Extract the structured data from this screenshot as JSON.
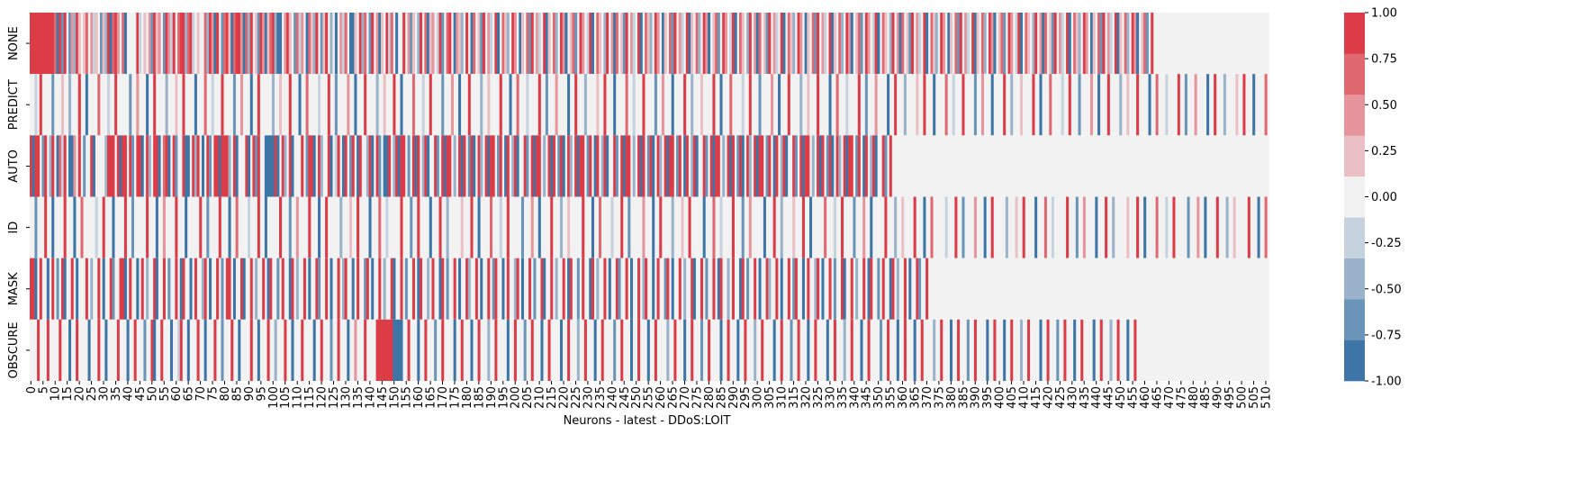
{
  "chart_data": {
    "type": "heatmap",
    "title": "",
    "xlabel": "Neurons - latest - DDoS:LOIT",
    "ylabel": "",
    "rows": [
      "NONE",
      "PREDICT",
      "AUTO",
      "ID",
      "MASK",
      "OBSCURE"
    ],
    "n_columns": 512,
    "x_tick_labels": [
      "0",
      "5",
      "10",
      "15",
      "20",
      "25",
      "30",
      "35",
      "40",
      "45",
      "50",
      "55",
      "60",
      "65",
      "70",
      "75",
      "80",
      "85",
      "90",
      "95",
      "100",
      "105",
      "110",
      "115",
      "120",
      "125",
      "130",
      "135",
      "140",
      "145",
      "150",
      "155",
      "160",
      "165",
      "170",
      "175",
      "180",
      "185",
      "190",
      "195",
      "200",
      "205",
      "210",
      "215",
      "220",
      "225",
      "230",
      "235",
      "240",
      "245",
      "250",
      "255",
      "260",
      "265",
      "270",
      "275",
      "280",
      "285",
      "290",
      "295",
      "300",
      "305",
      "310",
      "315",
      "320",
      "325",
      "330",
      "335",
      "340",
      "345",
      "350",
      "355",
      "360",
      "365",
      "370",
      "375",
      "380",
      "385",
      "390",
      "395",
      "400",
      "405",
      "410",
      "415",
      "420",
      "425",
      "430",
      "435",
      "440",
      "445",
      "450",
      "455",
      "460",
      "465",
      "470",
      "475",
      "480",
      "485",
      "490",
      "495",
      "500",
      "505",
      "510"
    ],
    "value_range": [
      -1.0,
      1.0
    ],
    "colorbar": {
      "ticks": [
        "1.00",
        "0.75",
        "0.50",
        "0.25",
        "0.00",
        "-0.25",
        "-0.50",
        "-0.75",
        "-1.00"
      ],
      "levels": 9,
      "colors": [
        "#3d76a6",
        "#6b95b8",
        "#9ab3ca",
        "#c6d3df",
        "#f2f2f2",
        "#ebc0c5",
        "#e6959c",
        "#e06870",
        "#dc3c47"
      ]
    },
    "values_rle": [
      "0,1:10 0.75:1 -1:1 1:1 -0.75:1 1:1 0:1 -0.75:1 0.5:1 -0.5:1 1:1 0.25:1 0:1 0.25:1 0.75:1 0:1 0.5:1 -0.25:1 0.25:1 0:1 -0.75:1 0.25:1 -0.5:1 1:1 -1:1 0.75:1 1:1 0.5:1 0:1 0.75:1 -1:1 0:4 1:1 -0.25:1 0:1 0.25:1 0:1 0.5:1 -0.75:1 1:1 0.25:1 0.5:1 0:1 -0.75:1 1:1 0.5:1 -0.25:1 1:1 0:1 0.75:1 1:2 -0.5:1 0.75:1 1:1 -0.25:1 0:1 0.25:1 0:2 0.75:1 -0.5:1 1:1 0.5:1 -1:1 1:1 0:1 -0.75:1 0.75:1 1:1 0.25:1 -1:1 0.75:1 1:2 0.5:1 -1:1 0.75:1 -0.5:1 1:1 0:1 0.25:1 -0.75:1 1:1 0.5:1 -1:1 0.25:1 0.75:1 1:1 -0.5:1 -1:2 0:1 0.5:1 1:1 0.25:1 0:1 -0.75:1 0.75:1 -0.25:1 0.5:1 0:1 -1:1 0.75:1 0.25:1 -0.5:1 1:1 0:1 -0.75:1 0.25:1 1:1 0:1 -0.5:1 0:1 -1:1 0:1 0.5:1 -0.25:1 0.75:1 0:1 -1:2 0.25:1 0:1 1:1 -0.5:1 0.75:1 0:1 -0.75:1 1:1 0:1 0.5:1 -1:1 0.25:1 0:1 1:1 -0.25:1 0.75:1 0:1 -1:1 0:2 1:1 0:1 0.5:1 -0.75:1 0.25:1 0:1 -0.5:1 1:1 0:1 0.75:1 -1:1 0.25:1 0.5:1 0:1 -0.25:1 1:1 -0.75:1 0:1 0.75:1 1:1 0:1 -1:1 0.5:1 0.25:1 -0.5:1 0:1 1:1 0:1 -1:1 0.75:1 0:1 0.25:1 -0.75:1 1:1 0:1 0.5:1 -0.25:1 0:1 1:1 -1:1 0:1 0.75:1 0.25:1 -0.5:1 0:1 1:1 0.5:1 0:1 -1:1 0.25:1 0:1 0.75:1 -0.75:1 1:1 0:1 0.5:1 -0.25:1 0:1 1:1 -1:1 0.25:1 0:1 0.75:1 -0.5:1 0:1 1:1 0.5:1 -1:1 0:1 0.25:1 0.75:1 -0.75:1 0:1 1:1 0.5:1 0:1 -0.25:1 1:1 -1:1 0:1 0.75:1 0.25:1 0:1 -0.5:1 1:1 0:1 0.5:1 -1:1 0.75:1 0:1 0.25:1 -0.75:1 1:1 0:1 0.5:1 -0.25:1 0:1 1:1 -1:1 0:1 0.75:1 0.25:1 -0.5:1 0:1 1:1 0.5:1 0:1 -1:1 0.25:1 0:1 0.75:1 -0.75:1 1:1 0:1 0.5:1 -0.25:1 0:1 1:1 -1:1 0.25:1 0:1 0.75:1 -0.5:1 0:1 1:1 0.5:1 -1:1 0:1 0.25:1 0.75:1 -0.75:1 0:1 1:1 0.5:1 0:1 -0.25:1 1:1 -1:1 0:1 0.75:1 0.25:1 0:1 -0.5:1 1:1 0:1 0.5:1 -1:1 0.75:1 0:1 0.25:1 -0.75:1 1:1 0:1 0.5:1 -0.25:1 0:1 1:1 -1:1 0:1 0.75:1 0.25:1 -0.5:1 0:1 1:1 0.5:1 0:1 -1:1 0.25:1 0:1 0.75:1 -0.75:1 1:1 0:1 0.5:1 -0.25:1 0:1 1:1 -1:1 0.25:1 0:1 0.75:1 -0.5:1 0:1 1:1 0.5:1 -1:1 0:1 0.25:1 0.75:1 -0.75:1 0:1 1:1 0.5:1 0:1 -0.25:1 1:1 -1:1 0:1 0.75:1 0.25:1 0:1 -0.5:1 1:1 0:1 0.5:1 -1:1 0.75:1 0:1 0.25:1 -0.75:1 1:1 0:1 0.5:1 -0.25:1 0:1 1:1 -1:1 0:1 0.75:1 0.25:1 -0.5:1 0:1 1:1 0.5:1 0:1 -1:1 0.25:1 0:1 0.75:1 -0.75:1 1:1 0:1 0.5:1 -0.25:1 0:1 1:1 -1:1 0.25:1 0:1 0.75:1 -0.5:1 0:1 1:1 0.5:1 -1:1 0:1 0.25:1 0.75:1 -0.75:1 0:1 1:1 0.5:1 0:1 -0.25:1 1:1 -1:1 0:1 0.75:1 0.25:1 0:1 -0.5:1 1:1 0:1 0.5:1 -1:1 0.75:1 0:1 0.25:1 -0.75:1 1:1 0:1 0.5:1 -0.25:1 0:1 1:1 -1:1 0:1 0.75:1 0.25:1 -0.5:1 0:1 1:1 0.5:1 0:1 -1:1 0.25:1 0:1 0.75:1 -0.75:1 1:1 0:1 0.5:1 -0.25:1 0:1 1:1 -1:1 0.25:1 0:1 0.75:1 -0.5:1 0:1 1:1 0.5:1 -1:1 0:1 0.25:1 0.75:1 -0.75:1 0:1 1:1",
      "0,0:2 -0.25:1 0:1 1:1 0:4 -0.75:1 0:3 0.25:1 0:2 -0.5:1 0:3 1:1 0:2 -1:1 0:4 0.75:1 0:3 -0.25:1 0:2 1:1 0:5 -0.75:1 0:2 0.5:1 0:3 -1:1 0:2 1:1 0:4 -0.5:1 0:3 0.25:1 0:2 1:1 0:4 -1:1 0:3 0.75:1 0:2 -0.25:1 0:3 1:1 0:4 -0.75:1 0:2 0.5:1 0:3 -1:1 0:2 1:1 0:5 -0.5:1 0:2 0.25:1 0:3 1:1 0:3 -1:1 0:2 0.75:1 0:4 -0.25:1 0:3 1:1 0:2 -0.75:1 0:4 0.5:1 0:2 -1:1 0:3 1:1 0:4 -0.5:1 0:2 0.25:1 0:3 1:1 0:2 -1:1 0:4 0.75:1 0:3 -0.25:1 0:2 1:1 0:4 -0.75:1 0:3 0.5:1 0:2 -1:1 0:3 1:1 0:4 -0.5:1 0:2 0.25:1 0:4 1:1 0:3 -1:1 0:2 0.75:1 0:3 -0.25:1 0:4 1:1 0:2 -0.75:1 0:3 0.5:1 0:4 -1:1 0:2 1:1 0:3 -0.5:1 0:4 0.25:1 0:2 1:1 0:3 -1:1 0:4 0.75:1 0:2 -0.25:1 0:3 1:1 0:4 -0.75:1 0:2 0.5:1 0:3 -1:1 0:4 1:1 0:2 -0.5:1 0:3 0.25:1 0:4 1:1 0:2 -1:1 0:3 0.75:1 0:4 -0.25:1 0:2 1:1 0:3 -0.75:1 0:4 0.5:1 0:2 -1:1 0:3 1:1 0:4 -0.5:1 0:2 0.25:1 0:3 1:1 0:4 -1:1 0:2 0.75:1 0:3 -0.25:1 0:4 1:1 0:2 -0.75:1 0:3 0.5:1 0:4 -1:1 0:2 1:1 0:3 -0.5:1 0:4 0.25:1 0:2 1:1 0:3 -1:1 0:4 0.75:1 0:2 -0.25:1 0:3 1:1 0:4 -0.75:1 0:2 0.5:1 0:3 -1:1 0:4 1:1 0:2 -0.5:1 0:3 0.25:1 0:4 1:1 0:2 -1:1 0:3 0.75:1 0:4 -0.25:1 0:2 1:1 0:3 -0.75:1 0:4 0.5:1 0:2 -1:1 0:3 1:1 0:4 -0.5:1 0:2 0.25:1 0:3 1:1 0:4 -1:1 0:2 0.75:1 0:3 -0.25:1 0:4 1:1 0:2 -0.75:1 0:3 0.5:1 0:4 -1:1 0:2 1:1 0:3 -0.5:1 0:4 0.25:1 0:2 1:1 0:3 -1:1 0:4 0.75:1 0:2 -0.25:1 0:3 1:1",
      "0,1:1 -1:1 1:2 0:1 -0.75:1 1:1 0:1 -0.5:1 1:1 0:1 -1:1 0.75:1 -0.25:1 1:1 0:1 -1:2 0.5:1 0:1 1:1 0:1 -0.75:1 0:2 1:1 -1:1 0:4 -0.5:1 1:3 0:1 1:1 -1:1 1:2 0:1 1:1 -0.75:1 0:1 1:2 -1:1 0:1 1:1 -0.5:1 0:1 1:2 -1:1 0:1 0.75:1 1:1 -1:1 0:1 1:1 -0.75:1 0:2 1:1 -1:2 0:1 1:1 -0.5:1 1:1 0:1 -1:1 0:1 1:1 -0.75:1 0:1 1:2 -1:1 1:3 -0.5:1 0:1 1:1 -1:1 0:3 1:1 -1:1 0:1 1:1 -0.75:1 1:1 0:2 -1:4 1:1 -1:1 0:1 1:1 -0.5:1 0:1 1:1 -1:1 0:3 1:1 0:1 -0.75:1 1:2 -1:1 0:1 1:1 -0.5:1 0:2 1:1 -1:1 0:1 -0.25:1 1:1 0:1 -1:1 1:1 0:1 -0.75:1 1:1 0:1 -1:1 1:1 0:2 -0.5:1 1:1 -1:1 0:1 1:1 -0.75:1 0:1 -1:2 1:1 0:1 -0.5:1 1:1 -1:1 1:2 0:1 -0.75:1 0:1 1:1 -1:1 1:1 0:1 -0.5:1 1:1 -1:1 0:2 1:1 -0.75:1 0:1 1:1 -1:1 1:2 0:1 -0.5:1 0:1 1:1 -1:1 1:1 0:1 -0.75:1 1:1 -1:1 0:1 1:1 -0.5:1 0:1 1:1 -1:1 1:2 0:1 -0.75:1 1:1 0:1 -1:1 1:1 0:1 -0.5:1 1:1 -1:1 0:2 1:1 -0.75:1 0:1 1:1 -1:1 1:2 0:1 -0.5:1 0:1 1:1 -1:1 1:1 0:1 -0.75:1 1:1 -1:1 0:1 1:1 -0.5:1 0:1 1:1 -1:1 1:2 0:1 -0.75:1 1:1 0:1 -1:1 1:1 0:1 -0.5:1 1:1 -1:1 0:2 1:1 -0.75:1 0:1 1:1 -1:1 1:2 0:1 -0.5:1 0:1 1:1 -1:1 1:1 0:1 -0.75:1 1:1 -1:1 0:1 1:1 -0.5:1 0:1 1:1 -1:1 1:2 0:1 -0.75:1 1:1 0:1 -1:1 1:1 0:1 -0.5:1 1:1 -1:1 0:2 1:1 -0.75:1 0:1 1:1 -1:1 1:2 0:1 -0.5:1 0:1 1:1 -1:1 1:1 0:1 -0.75:1 1:1 -1:1 0:1 1:1 -0.5:1 0:1 1:1 -1:1 1:2 0:1 -0.75:1 1:1 0:1 -1:1 1:1 0:1 -0.5:1 1:1 -1:1 0:2 1:1 -0.75:1 0:1 1:1 -1:1 1:2 0:1 -0.5:1 0:1 1:1 -1:1 1:1 0:1 -0.75:1 1:1 -1:1 0:1 1:1 -0.5:1 0:1 1:1 -1:1 1:2 0:1 -0.75:1 1:1 0:1 -1:1 1:1 0:1 -0.5:1 1:1 -1:1 0:2 1:1 -0.75:1 0:1 1:1",
      "0,0:2 -0.75:1 0:3 1:1 0:2 -1:1 0:4 1:1 0:3 -1:1 0:2 0.75:1 0:5 -0.25:1 0:2 1:1 0:3 -1:1 0:4 1:1 0:2 -0.75:1 0:5 1:1 0:3 -1:1 0:2 0.5:1 0:4 1:1 0:3 -1:1 0:5 1:1 0:2 -0.75:1 0:4 1:1 0:3 -1:1 0:2 0.75:1 0:4 -0.25:1 0:3 1:1 0:2 -1:1 0:5 1:1 0:3 -0.75:1 0:2 0.5:1 0:4 1:1 0:3 -1:1 0:2 1:1 0:5 -0.5:1 0:3 0.25:1 0:2 1:1 0:4 -1:1 0:3 0.75:1 0:2 -0.25:1 0:5 1:1 0:3 -0.75:1 0:2 1:1 0:4 -1:1 0:3 1:1 0:2 -0.5:1 0:5 0.25:1 0:3 1:1 0:2 -1:1 0:4 0.75:1 0:3 -0.25:1 0:2 1:1 0:5 -0.75:1 0:3 0.5:1 0:2 -1:1 0:4 1:1 0:3 -0.5:1 0:2 0.25:1 0:5 1:1 0:3 -1:1 0:2 0.75:1 0:4 -0.25:1 0:3 1:1 0:2 -0.75:1 0:5 0.5:1 0:3 -1:1 0:2 1:1 0:4 -0.5:1 0:3 0.25:1 0:2 1:1 0:5 -1:1 0:3 0.75:1 0:2 -0.25:1 0:4 1:1 0:3 -0.75:1 0:2 0.5:1 0:5 -1:1 0:3 1:1 0:2 -0.5:1 0:4 0.25:1 0:3 1:1 0:2 -1:1 0:5 0.75:1 0:3 -0.25:1 0:2 1:1 0:4 -0.75:1 0:3 0.5:1 0:2 -1:1 0:5 1:1 0:3 -0.5:1 0:2 0.25:1 0:4 1:1 0:3 -1:1 0:2 0.75:1 0:5 -0.25:1 0:3 1:1 0:2 -0.75:1 0:4 0.5:1 0:3 -1:1 0:2 1:1 0:5 -0.5:1 0:3 0.25:1 0:2 1:1 0:4 -1:1 0:3 0.75:1 0:2 -0.25:1 0:5 1:1 0:3 -0.75:1 0:2 0.5:1 0:4 -1:1 0:3 1:1 0:2 -0.5:1 0:5 0.25:1 0:3 1:1 0:2 -1:1 0:4 0.75:1 0:3 -0.25:1 0:2 1:1 0:5 -0.75:1 0:3 0.5:1 0:2 -1:1 0:4 1:1 0:3 -0.5:1 0:2 0.25:1 0:5 1:1 0:3 -1:1 0:2 0.75:1",
      "0,1:2 -1:1 0:1 1:1 0:2 -1:1 0:1 1:1 0:1 -0.75:1 0:1 1:1 -1:1 0:2 1:1 0:1 -1:1 0:3 1:1 0:1 -0.5:1 0:2 1:1 0:1 -1:1 0:2 1:1 -0.75:1 0:2 1:2 -1:1 0:1 1:1 0:2 -1:1 0:1 1:1 0:1 -0.5:1 0:2 1:1 -1:1 0:2 1:1 0:1 -0.75:1 0:2 1:1 0:1 -1:1 1:1 0:2 -1:1 0:1 1:1 0:2 -0.5:1 1:1 0:1 -1:1 0:2 1:1 0:1 -0.75:1 0:1 1:2 0:1 -1:1 0:2 1:1 -1:1 0:2 1:1 0:1 -0.5:1 0:2 1:1 0:1 -1:1 1:1 0:2 -0.75:1 0:1 1:1 0:2 -1:1 1:1 0:1 -0.5:1 0:2 1:1 0:1 -1:1 0:2 1:1 -0.75:1 0:2 1:1 0:1 -1:1 0:2 1:1 0:1 -0.5:1 1:1 0:2 -1:1 0:1 1:1 0:2 -0.75:1 1:1 0:1 -1:1 0:2 1:1 0:1 -0.5:1 0:2 1:1 -1:1 0:2 1:1 0:1 -0.75:1 0:2 1:1 0:1 -1:1 1:1 0:2 -0.5:1 0:1 1:1 0:2 -1:1 1:1 0:1 -0.75:1 0:2 1:1 0:1 -1:1 0:2 1:1 -0.5:1 0:2 1:1 0:1 -1:1 0:2 1:1 0:1 -0.75:1 1:1 0:2 -1:1 0:1 1:1 0:2 -0.5:1 1:1 0:1 -1:1 0:2 1:1 0:1 -0.75:1 0:2 1:1 -1:1 0:2 1:1 0:1 -0.5:1 0:2 1:1 0:1 -1:1 1:1 0:2 -0.75:1 0:1 1:1 0:2 -1:1 1:1 0:1 -0.5:1 0:2 1:1 0:1 -1:1 0:2 1:1 -0.75:1 0:2 1:1 0:1 -1:1 0:2 1:1 0:1 -0.5:1 1:1 0:2 -1:1 0:1 1:1 0:2 -0.75:1 1:1 0:1 -1:1 0:2 1:1 0:1 -0.5:1 0:2 1:1 -1:1 0:2 1:1 0:1 -0.75:1 0:2 1:1 0:1 -1:1 1:1 0:2 -0.5:1 0:1 1:1 0:2 -1:1 1:1 0:1 -0.75:1 0:2 1:1 0:1 -1:1 0:2 1:1 -0.5:1 0:2 1:1 0:1 -1:1 0:2 1:1 0:1 -0.75:1 1:1 0:2 -1:1 0:1 1:1 0:2 -0.5:1 1:1 0:1 -1:1 0:2 1:1 0:1 -0.75:1 0:2 1:1 -1:1 0:2 1:1 0:1 -0.5:1 0:2 1:1 0:1 -1:1 1:1 0:2 -0.75:1 0:1 1:1 0:2 -1:1 1:1 0:1 -0.5:1 0:2 1:1 0:1 -1:1 0:2 1:1 -0.75:1 0:2 1:1",
      "0,0:3 1:1 0:3 1:1 0:4 1:1 0:3 -1:1 0:2 1:1 0:4 -1:1 0:3 1:1 0:2 -1:1 0:4 1:1 0:3 -1:1 0:2 1:1 0:3 -0.75:1 0:2 1:1 -1:1 0:2 1:1 0:3 -1:1 0:2 -0.25:1 1:1 0:2 -1:1 0:3 1:1 0:2 -1:1 0:3 1:1 0:2 -0.75:1 0:3 1:1 0:2 -1:1 0:4 1:1 0:2 -1:1 0:3 1:1 0:2 -0.5:1 0:3 1:1 0:2 -1:1 0:3 1:1 0:4 -1:1 0:2 1:1 0:3 -0.75:1 0:2 1:1 0:3 -1:1 0:2 0.5:1 0:3 1:1 0:4 1:7 -1:4 0:2 1:1 0:3 -1:1 0:2 1:1 0:3 -0.75:1 0:2 1:1 0:4 -1:1 0:2 1:1 0:3 -1:1 0:2 1:1 0:3 -0.5:1 0:2 1:1 0:4 -1:1 0:2 1:1 0:3 -0.75:1 0:2 1:1 0:3 -1:1 0:2 1:1 0:4 -1:1 0:2 1:1 0:3 -0.5:1 0:2 1:1 0:3 -1:1 0:2 1:1 0:4 -0.75:1 0:2 1:1 0:3 -1:1 0:2 1:1 0:3 -1:1 0:2 1:1 0:4 -0.5:1 0:2 1:1 0:3 -1:1 0:2 1:1 0:3 -0.75:1 0:2 1:1 0:4 -1:1 0:2 1:1 0:3 -1:1 0:2 1:1 0:3 -0.5:1 0:2 1:1 0:4 -1:1 0:2 1:1 0:3 -0.75:1 0:2 1:1 0:3 -1:1 0:2 1:1 0:4 -1:1 0:2 1:1 0:3 -0.5:1 0:2 1:1 0:3 -1:1 0:2 1:1 0:4 -0.75:1 0:2 1:1 0:3 -1:1 0:2 1:1 0:3 -1:1 0:2 1:1 0:4 -0.5:1 0:2 1:1 0:3 -1:1 0:2 1:1 0:3 -0.75:1 0:2 1:1 0:4 -1:1 0:2 1:1 0:3 -1:1 0:2 1:1 0:3 -0.5:1 0:2 1:1 0:4 -1:1 0:2 1:1 0:3 -0.75:1 0:2 1:1 0:3 -1:1 0:2 1:1 0:4 -1:1 0:2 1:1 0:3 -0.5:1 0:2 1:1 0:3 -1:1 0:2 1:1"
    ]
  }
}
